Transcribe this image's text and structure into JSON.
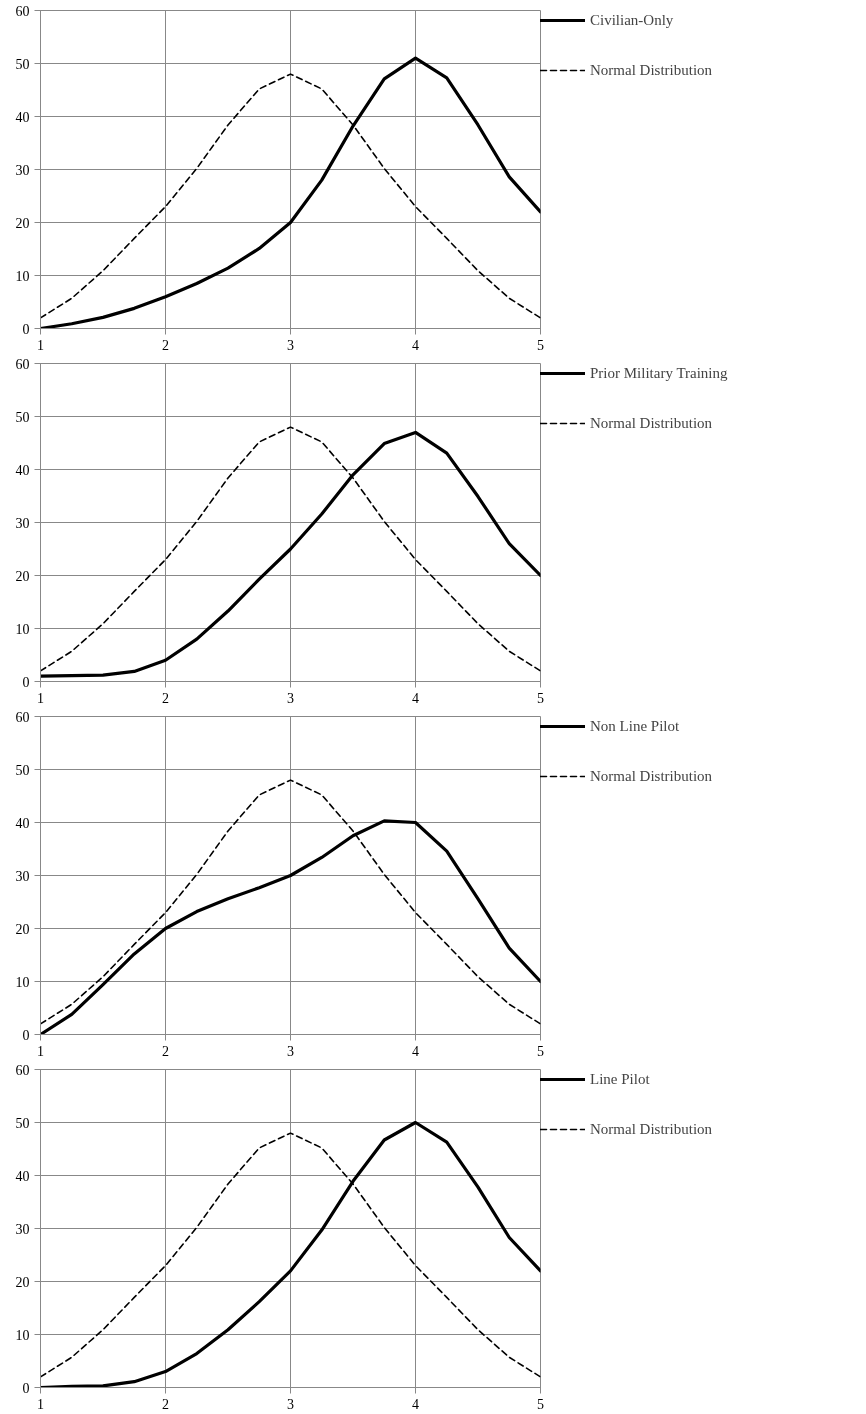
{
  "chart_data": [
    {
      "type": "line",
      "x": [
        1,
        1.25,
        1.5,
        1.75,
        2,
        2.25,
        2.5,
        2.75,
        3,
        3.25,
        3.5,
        3.75,
        4,
        4.25,
        4.5,
        4.75,
        5
      ],
      "xlim": [
        1,
        5
      ],
      "xticks": [
        1,
        2,
        3,
        4,
        5
      ],
      "ylim": [
        0,
        60
      ],
      "yticks": [
        0,
        10,
        20,
        30,
        40,
        50,
        60
      ],
      "grid": true,
      "legend": "right",
      "series": [
        {
          "name": "Civilian-Only",
          "color": "#000000",
          "line_style": "solid",
          "values": [
            0,
            0.9,
            2.1,
            3.8,
            6,
            8.5,
            11.4,
            15.1,
            20,
            28,
            38.2,
            47.1,
            51,
            47.3,
            38.4,
            28.6,
            22
          ]
        },
        {
          "name": "Normal Distribution",
          "color": "#000000",
          "line_style": "dashed",
          "values": [
            2,
            5.7,
            10.9,
            17,
            23,
            30.2,
            38.4,
            45.2,
            48,
            45.2,
            38.4,
            30.2,
            23,
            17,
            10.9,
            5.7,
            2
          ]
        }
      ]
    },
    {
      "type": "line",
      "x": [
        1,
        1.25,
        1.5,
        1.75,
        2,
        2.25,
        2.5,
        2.75,
        3,
        3.25,
        3.5,
        3.75,
        4,
        4.25,
        4.5,
        4.75,
        5
      ],
      "xlim": [
        1,
        5
      ],
      "xticks": [
        1,
        2,
        3,
        4,
        5
      ],
      "ylim": [
        0,
        60
      ],
      "yticks": [
        0,
        10,
        20,
        30,
        40,
        50,
        60
      ],
      "grid": true,
      "legend": "right",
      "series": [
        {
          "name": "Prior Military Training",
          "color": "#000000",
          "line_style": "solid",
          "values": [
            1,
            1.1,
            1.2,
            1.9,
            4,
            8,
            13.3,
            19.3,
            25,
            31.6,
            39,
            44.9,
            47,
            43.1,
            34.9,
            26,
            20
          ]
        },
        {
          "name": "Normal Distribution",
          "color": "#000000",
          "line_style": "dashed",
          "values": [
            2,
            5.7,
            10.9,
            17,
            23,
            30.2,
            38.4,
            45.2,
            48,
            45.2,
            38.4,
            30.2,
            23,
            17,
            10.9,
            5.7,
            2
          ]
        }
      ]
    },
    {
      "type": "line",
      "x": [
        1,
        1.25,
        1.5,
        1.75,
        2,
        2.25,
        2.5,
        2.75,
        3,
        3.25,
        3.5,
        3.75,
        4,
        4.25,
        4.5,
        4.75,
        5
      ],
      "xlim": [
        1,
        5
      ],
      "xticks": [
        1,
        2,
        3,
        4,
        5
      ],
      "ylim": [
        0,
        60
      ],
      "yticks": [
        0,
        10,
        20,
        30,
        40,
        50,
        60
      ],
      "grid": true,
      "legend": "right",
      "series": [
        {
          "name": "Non Line Pilot",
          "color": "#000000",
          "line_style": "solid",
          "values": [
            0,
            3.8,
            9.4,
            15.2,
            20,
            23.2,
            25.6,
            27.7,
            30,
            33.4,
            37.5,
            40.3,
            40,
            34.6,
            25.6,
            16.3,
            10
          ]
        },
        {
          "name": "Normal Distribution",
          "color": "#000000",
          "line_style": "dashed",
          "values": [
            2,
            5.7,
            10.9,
            17,
            23,
            30.2,
            38.4,
            45.2,
            48,
            45.2,
            38.4,
            30.2,
            23,
            17,
            10.9,
            5.7,
            2
          ]
        }
      ]
    },
    {
      "type": "line",
      "x": [
        1,
        1.25,
        1.5,
        1.75,
        2,
        2.25,
        2.5,
        2.75,
        3,
        3.25,
        3.5,
        3.75,
        4,
        4.25,
        4.5,
        4.75,
        5
      ],
      "xlim": [
        1,
        5
      ],
      "xticks": [
        1,
        2,
        3,
        4,
        5
      ],
      "ylim": [
        0,
        60
      ],
      "yticks": [
        0,
        10,
        20,
        30,
        40,
        50,
        60
      ],
      "grid": true,
      "legend": "right",
      "series": [
        {
          "name": "Line Pilot",
          "color": "#000000",
          "line_style": "solid",
          "values": [
            0,
            0.2,
            0.3,
            1.1,
            3,
            6.4,
            10.9,
            16.2,
            22,
            29.7,
            38.9,
            46.7,
            50,
            46.3,
            37.8,
            28.3,
            22
          ]
        },
        {
          "name": "Normal Distribution",
          "color": "#000000",
          "line_style": "dashed",
          "values": [
            2,
            5.7,
            10.9,
            17,
            23,
            30.2,
            38.4,
            45.2,
            48,
            45.2,
            38.4,
            30.2,
            23,
            17,
            10.9,
            5.7,
            2
          ]
        }
      ]
    }
  ]
}
